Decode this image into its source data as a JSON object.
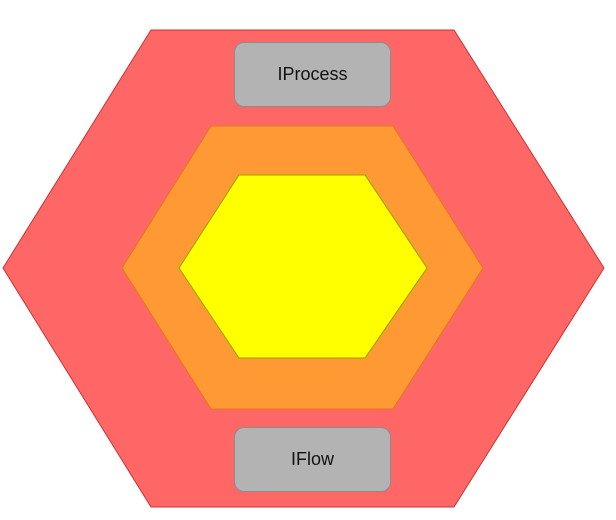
{
  "diagram": {
    "layers": [
      {
        "name": "outer-layer",
        "color": "#ff6666",
        "stroke": "#cc3333"
      },
      {
        "name": "middle-layer",
        "color": "#ff9933",
        "stroke": "#e07a1a"
      },
      {
        "name": "inner-layer",
        "color": "#ffff00",
        "stroke": "#9aa000"
      }
    ],
    "labels": {
      "top": "IProcess",
      "bottom": "IFlow"
    },
    "label_style": {
      "fill": "#b3b3b3",
      "border": "#8c8c8c"
    }
  }
}
